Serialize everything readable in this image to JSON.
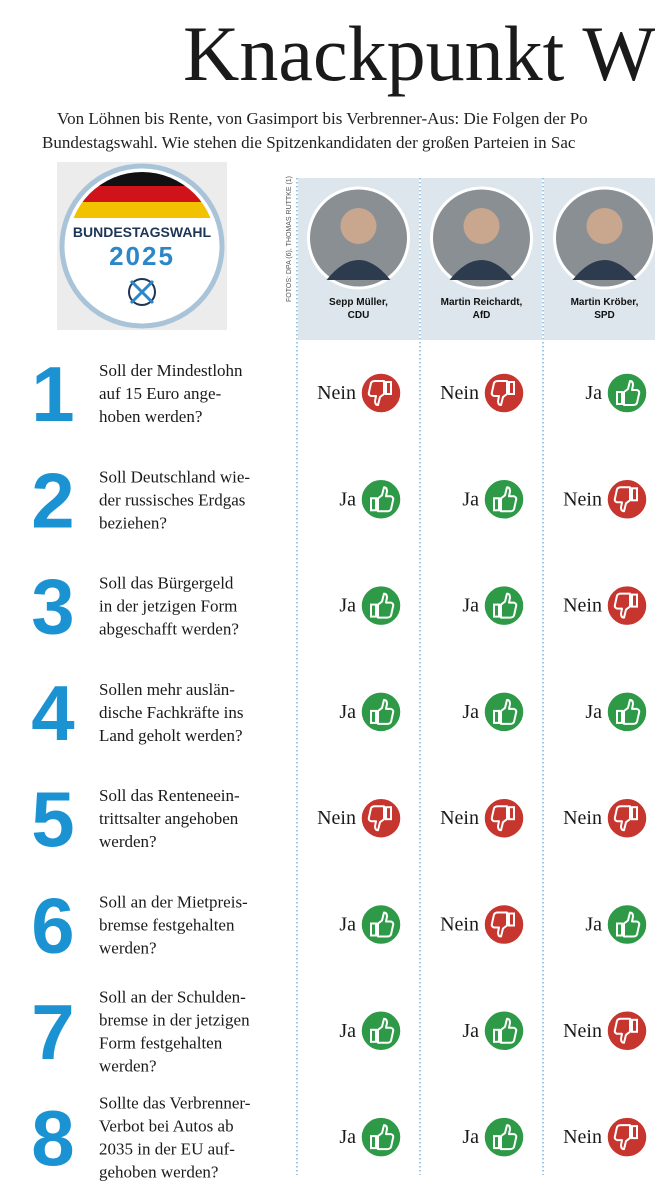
{
  "header": {
    "title": "Knackpunkt W",
    "intro": [
      "Von Löhnen bis Rente, von Gasimport bis Verbrenner-Aus: Die Folgen der Po",
      "Bundestagswahl. Wie stehen die Spitzenkandidaten der großen Parteien in Sac"
    ]
  },
  "logo": {
    "label": "BUNDESTAGSWAHL",
    "year": "2025"
  },
  "credit": "FOTOS: DPA (6), THOMAS RUTTKE (1)",
  "candidates": [
    {
      "name": "Sepp Müller,",
      "party": "CDU"
    },
    {
      "name": "Martin Reichardt,",
      "party": "AfD"
    },
    {
      "name": "Martin Kröber,",
      "party": "SPD"
    }
  ],
  "questions": [
    {
      "number": "1",
      "lines": [
        "Soll der Mindestlohn",
        "auf 15 Euro ange-",
        "hoben werden?"
      ],
      "answers": [
        "Nein",
        "Nein",
        "Ja"
      ]
    },
    {
      "number": "2",
      "lines": [
        "Soll Deutschland wie-",
        "der russisches Erdgas",
        "beziehen?"
      ],
      "answers": [
        "Ja",
        "Ja",
        "Nein"
      ]
    },
    {
      "number": "3",
      "lines": [
        "Soll das Bürgergeld",
        "in der jetzigen Form",
        "abgeschafft werden?"
      ],
      "answers": [
        "Ja",
        "Ja",
        "Nein"
      ]
    },
    {
      "number": "4",
      "lines": [
        "Sollen mehr auslän-",
        "dische Fachkräfte ins",
        "Land geholt werden?"
      ],
      "answers": [
        "Ja",
        "Ja",
        "Ja"
      ]
    },
    {
      "number": "5",
      "lines": [
        "Soll das Renteneein-",
        "trittsalter angehoben",
        "werden?"
      ],
      "answers": [
        "Nein",
        "Nein",
        "Nein"
      ]
    },
    {
      "number": "6",
      "lines": [
        "Soll an der Mietpreis-",
        "bremse festgehalten",
        "werden?"
      ],
      "answers": [
        "Ja",
        "Nein",
        "Ja"
      ]
    },
    {
      "number": "7",
      "lines": [
        "Soll an der Schulden-",
        "bremse in der jetzigen",
        "Form festgehalten",
        "werden?"
      ],
      "answers": [
        "Ja",
        "Ja",
        "Nein"
      ]
    },
    {
      "number": "8",
      "lines": [
        "Sollte das Verbrenner-",
        "Verbot bei Autos ab",
        "2035 in der EU auf-",
        "gehoben werden?"
      ],
      "answers": [
        "Ja",
        "Ja",
        "Nein"
      ]
    }
  ]
}
